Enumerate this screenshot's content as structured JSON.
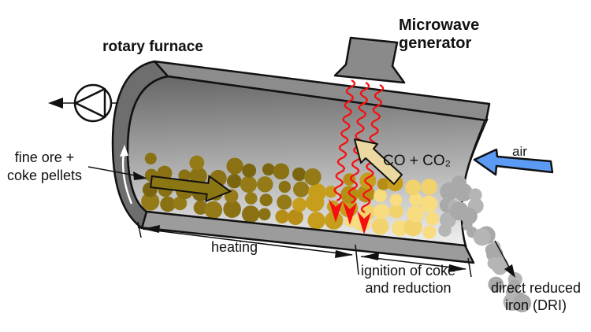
{
  "labels": {
    "rotary_furnace": "rotary furnace",
    "microwave_generator": "Microwave generator",
    "feed": "fine ore + coke pellets",
    "offgas": "CO + CO₂",
    "air": "air",
    "zone_heating": "heating",
    "zone_ignition": "ignition of coke and reduction",
    "product": "direct reduced iron (DRI)"
  },
  "colors": {
    "furnace_shell": "#8c8c8c",
    "furnace_wall_dark": "#6e6e6e",
    "interior_top": "#666666",
    "interior_bottom": "#eaeaea",
    "bottom_band": "#9c9c9c",
    "generator": "#8a8a8a",
    "pellet_olive": "#8a7214",
    "pellet_olive_dark": "#7b660f",
    "pellet_olive_light": "#957b18",
    "pellet_golden": "#c79e1c",
    "pellet_golden_dark": "#b78e15",
    "pellet_yellow": "#f8dc80",
    "pellet_yellow_dark": "#f2d26d",
    "pellet_gray": "#b5b5b5",
    "pellet_gray_dark": "#a9a9a9",
    "microwave_red": "#f50f0f",
    "air_arrow_blue": "#5b9bf5",
    "gas_arrow_tan": "#ecd9a1",
    "flow_arrow_olive": "#8a7612"
  }
}
